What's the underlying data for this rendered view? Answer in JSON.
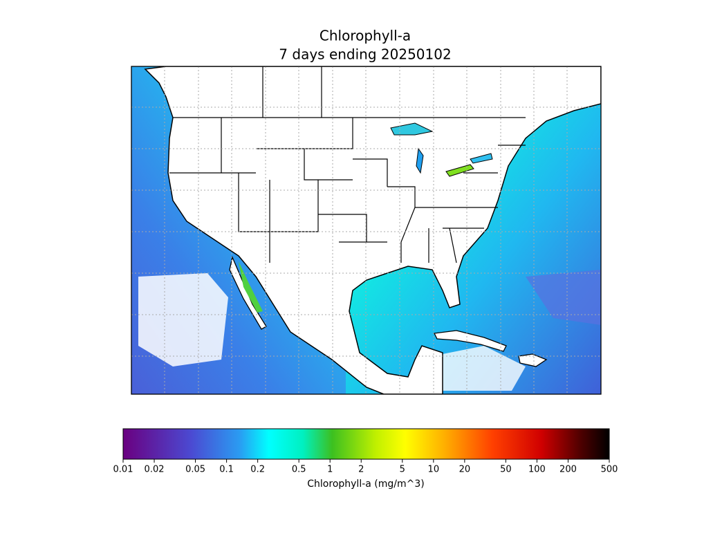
{
  "map": {
    "title": [
      "Chlorophyll-a",
      "7 days ending 20250102"
    ],
    "colorbar": {
      "label": "Chlorophyll-a (mg/m^3)",
      "scale": "log",
      "lim": [
        0.01,
        500
      ],
      "ticks": [
        0.01,
        0.02,
        0.05,
        0.1,
        0.2,
        0.5,
        1,
        2,
        5,
        10,
        20,
        50,
        100,
        200,
        500
      ]
    }
  }
}
